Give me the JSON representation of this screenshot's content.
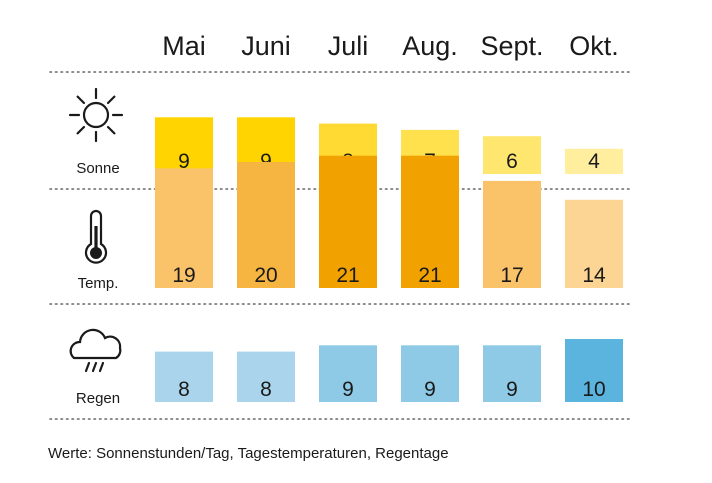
{
  "chart_data": {
    "type": "bar",
    "categories": [
      "Mai",
      "Juni",
      "Juli",
      "Aug.",
      "Sept.",
      "Okt."
    ],
    "series": [
      {
        "name": "Sonne",
        "icon": "sun-icon",
        "values": [
          9,
          9,
          8,
          7,
          6,
          4
        ],
        "colors": [
          "#FFD400",
          "#FFD400",
          "#FFDA33",
          "#FFE04D",
          "#FFE66E",
          "#FFEE9E"
        ]
      },
      {
        "name": "Temp.",
        "icon": "thermometer-icon",
        "values": [
          19,
          20,
          21,
          21,
          17,
          14
        ],
        "colors": [
          "#FAC36A",
          "#F6B441",
          "#F2A200",
          "#F2A200",
          "#FAC36A",
          "#FCD493"
        ]
      },
      {
        "name": "Regen",
        "icon": "rain-cloud-icon",
        "values": [
          8,
          8,
          9,
          9,
          9,
          10
        ],
        "colors": [
          "#A9D4EB",
          "#A9D4EB",
          "#8ECAE6",
          "#8ECAE6",
          "#8ECAE6",
          "#5BB4DE"
        ]
      }
    ],
    "footnote": "Werte: Sonnenstunden/Tag, Tagestemperaturen, Regentage"
  }
}
